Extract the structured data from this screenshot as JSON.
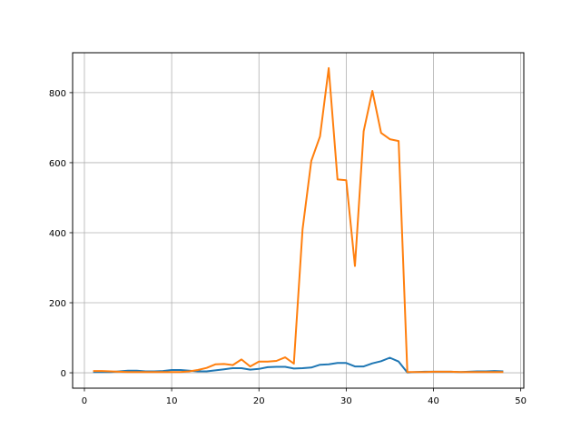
{
  "chart_data": {
    "type": "line",
    "title": "",
    "xlabel": "",
    "ylabel": "",
    "xlim": [
      -1.35,
      50.35
    ],
    "ylim": [
      -44,
      914
    ],
    "xticks": [
      0,
      10,
      20,
      30,
      40,
      50
    ],
    "yticks": [
      0,
      200,
      400,
      600,
      800
    ],
    "grid": true,
    "x": [
      1,
      2,
      3,
      4,
      5,
      6,
      7,
      8,
      9,
      10,
      11,
      12,
      13,
      14,
      15,
      16,
      17,
      18,
      19,
      20,
      21,
      22,
      23,
      24,
      25,
      26,
      27,
      28,
      29,
      30,
      31,
      32,
      33,
      34,
      35,
      36,
      37,
      38,
      39,
      40,
      41,
      42,
      43,
      44,
      45,
      46,
      47,
      48
    ],
    "series": [
      {
        "color": "#1f77b4",
        "values": [
          2,
          2,
          2,
          4,
          6,
          6,
          4,
          4,
          5,
          8,
          8,
          6,
          4,
          4,
          7,
          10,
          13,
          13,
          9,
          11,
          16,
          17,
          17,
          12,
          13,
          15,
          23,
          24,
          28,
          28,
          18,
          18,
          27,
          33,
          43,
          32,
          1,
          2,
          3,
          3,
          3,
          3,
          2,
          3,
          4,
          4,
          5,
          4
        ]
      },
      {
        "color": "#ff7f0e",
        "values": [
          5,
          5,
          4,
          3,
          2,
          2,
          2,
          2,
          2,
          2,
          2,
          4,
          8,
          14,
          24,
          25,
          22,
          38,
          18,
          32,
          32,
          34,
          44,
          26,
          410,
          605,
          675,
          870,
          552,
          550,
          305,
          690,
          805,
          685,
          667,
          662,
          2,
          2,
          2,
          3,
          3,
          3,
          2,
          2,
          2,
          2,
          2,
          2
        ]
      }
    ]
  }
}
